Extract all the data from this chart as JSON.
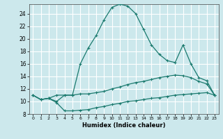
{
  "xlabel": "Humidex (Indice chaleur)",
  "bg_color": "#cce8ec",
  "grid_color": "#ffffff",
  "line_color": "#1a7a6e",
  "xlim": [
    -0.5,
    23.5
  ],
  "ylim": [
    8,
    25.5
  ],
  "xticks": [
    0,
    1,
    2,
    3,
    4,
    5,
    6,
    7,
    8,
    9,
    10,
    11,
    12,
    13,
    14,
    15,
    16,
    17,
    18,
    19,
    20,
    21,
    22,
    23
  ],
  "yticks": [
    8,
    10,
    12,
    14,
    16,
    18,
    20,
    22,
    24
  ],
  "series1_x": [
    0,
    1,
    2,
    3,
    4,
    5,
    6,
    7,
    8,
    9,
    10,
    11,
    12,
    13,
    14,
    15,
    16,
    17,
    18,
    19,
    20,
    21,
    22,
    23
  ],
  "series1_y": [
    11.0,
    10.3,
    10.5,
    9.8,
    8.5,
    8.5,
    8.6,
    8.7,
    9.0,
    9.2,
    9.5,
    9.7,
    10.0,
    10.1,
    10.3,
    10.5,
    10.6,
    10.8,
    11.0,
    11.1,
    11.2,
    11.3,
    11.4,
    11.0
  ],
  "series2_x": [
    0,
    1,
    2,
    3,
    4,
    5,
    6,
    7,
    8,
    9,
    10,
    11,
    12,
    13,
    14,
    15,
    16,
    17,
    18,
    19,
    20,
    21,
    22,
    23
  ],
  "series2_y": [
    11.0,
    10.3,
    10.5,
    11.0,
    11.0,
    11.0,
    11.2,
    11.2,
    11.4,
    11.6,
    12.0,
    12.3,
    12.7,
    13.0,
    13.2,
    13.5,
    13.8,
    14.0,
    14.2,
    14.1,
    13.8,
    13.2,
    12.8,
    11.0
  ],
  "series3_x": [
    0,
    1,
    2,
    3,
    4,
    5,
    6,
    7,
    8,
    9,
    10,
    11,
    12,
    13,
    14,
    15,
    16,
    17,
    18,
    19,
    20,
    21,
    22,
    23
  ],
  "series3_y": [
    11.0,
    10.3,
    10.5,
    10.0,
    11.0,
    11.0,
    16.0,
    18.5,
    20.5,
    23.0,
    25.0,
    25.5,
    25.2,
    24.0,
    21.5,
    19.0,
    17.5,
    16.5,
    16.2,
    19.0,
    16.0,
    13.8,
    13.3,
    11.0
  ]
}
